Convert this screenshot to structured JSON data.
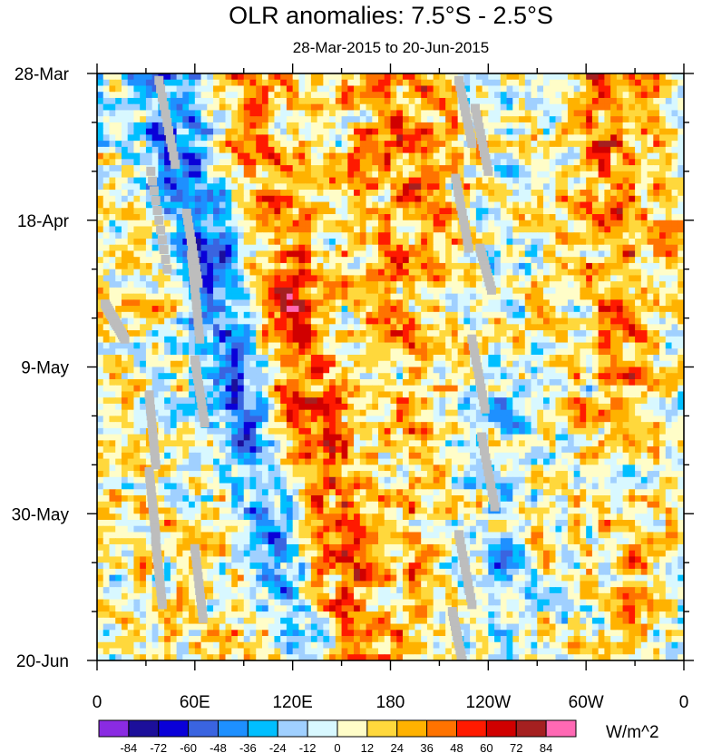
{
  "chart_data": {
    "type": "heatmap",
    "title": "OLR anomalies: 7.5°S - 2.5°S",
    "subtitle": "28-Mar-2015 to 20-Jun-2015",
    "x_ticks": [
      {
        "lon": 0,
        "label": "0"
      },
      {
        "lon": 60,
        "label": "60E"
      },
      {
        "lon": 120,
        "label": "120E"
      },
      {
        "lon": 180,
        "label": "180"
      },
      {
        "lon": 240,
        "label": "120W"
      },
      {
        "lon": 300,
        "label": "60W"
      },
      {
        "lon": 360,
        "label": "0"
      }
    ],
    "x_range": [
      0,
      360
    ],
    "y_ticks": [
      {
        "day": 0,
        "label": "28-Mar"
      },
      {
        "day": 21,
        "label": "18-Apr"
      },
      {
        "day": 42,
        "label": "9-May"
      },
      {
        "day": 63,
        "label": "30-May"
      },
      {
        "day": 84,
        "label": "20-Jun"
      }
    ],
    "y_range": [
      0,
      84
    ],
    "colorbar": {
      "unit": "W/m^2",
      "levels": [
        "-84",
        "-72",
        "-60",
        "-48",
        "-36",
        "-24",
        "-12",
        "0",
        "12",
        "24",
        "36",
        "48",
        "60",
        "72",
        "84"
      ],
      "colors": [
        "#8a2be2",
        "#1c0f9a",
        "#0a00d8",
        "#3a64e0",
        "#1e90ff",
        "#00bfff",
        "#a0d0ff",
        "#d8f8ff",
        "#fffdc8",
        "#ffd83c",
        "#ffb200",
        "#ff7300",
        "#ff1a00",
        "#d00000",
        "#a52020",
        "#ff69b4"
      ]
    }
  }
}
